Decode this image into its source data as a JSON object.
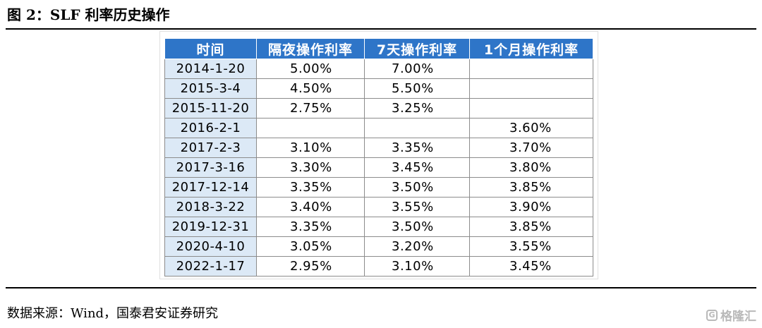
{
  "title": "图 2：SLF 利率历史操作",
  "table": {
    "headers": [
      "时间",
      "隔夜操作利率",
      "7天操作利率",
      "1个月操作利率"
    ],
    "rows": [
      [
        "2014-1-20",
        "5.00%",
        "7.00%",
        ""
      ],
      [
        "2015-3-4",
        "4.50%",
        "5.50%",
        ""
      ],
      [
        "2015-11-20",
        "2.75%",
        "3.25%",
        ""
      ],
      [
        "2016-2-1",
        "",
        "",
        "3.60%"
      ],
      [
        "2017-2-3",
        "3.10%",
        "3.35%",
        "3.70%"
      ],
      [
        "2017-3-16",
        "3.30%",
        "3.45%",
        "3.80%"
      ],
      [
        "2017-12-14",
        "3.35%",
        "3.50%",
        "3.85%"
      ],
      [
        "2018-3-22",
        "3.40%",
        "3.55%",
        "3.90%"
      ],
      [
        "2019-12-31",
        "3.35%",
        "3.50%",
        "3.85%"
      ],
      [
        "2020-4-10",
        "3.05%",
        "3.20%",
        "3.55%"
      ],
      [
        "2022-1-17",
        "2.95%",
        "3.10%",
        "3.45%"
      ]
    ]
  },
  "source": "数据来源：Wind，国泰君安证券研究",
  "watermark": {
    "icon": "G",
    "text": "格隆汇"
  },
  "colors": {
    "header_bg": "#2e75c8",
    "date_cell_bg": "#dce9f6"
  }
}
